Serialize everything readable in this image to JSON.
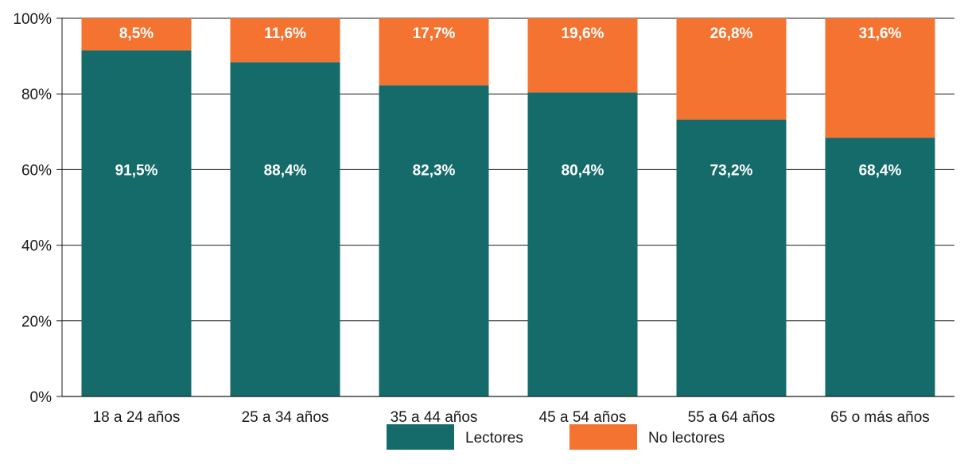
{
  "chart_data": {
    "type": "bar",
    "stacked": true,
    "categories": [
      "18 a 24 años",
      "25 a 34 años",
      "35 a 44 años",
      "45 a 54 años",
      "55 a 64 años",
      "65 o más años"
    ],
    "series": [
      {
        "name": "Lectores",
        "color": "#156a6a",
        "values": [
          91.5,
          88.4,
          82.3,
          80.4,
          73.2,
          68.4
        ],
        "labels": [
          "91,5%",
          "88,4%",
          "82,3%",
          "80,4%",
          "73,2%",
          "68,4%"
        ]
      },
      {
        "name": "No lectores",
        "color": "#f47330",
        "values": [
          8.5,
          11.6,
          17.7,
          19.6,
          26.8,
          31.6
        ],
        "labels": [
          "8,5%",
          "11,6%",
          "17,7%",
          "19,6%",
          "26,8%",
          "31,6%"
        ]
      }
    ],
    "y_ticks": [
      0,
      20,
      40,
      60,
      80,
      100
    ],
    "y_tick_labels": [
      "0%",
      "20%",
      "40%",
      "60%",
      "80%",
      "100%"
    ],
    "ylim": [
      0,
      100
    ],
    "grid": true,
    "legend_position": "bottom"
  }
}
